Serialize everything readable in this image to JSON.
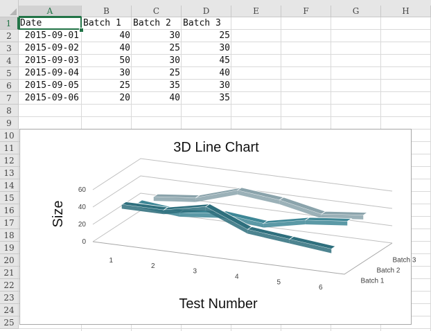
{
  "columns": [
    "A",
    "B",
    "C",
    "D",
    "E",
    "F",
    "G",
    "H"
  ],
  "rows": [
    "1",
    "2",
    "3",
    "4",
    "5",
    "6",
    "7",
    "8",
    "9",
    "10",
    "11",
    "12",
    "13",
    "14",
    "15",
    "16",
    "17",
    "18",
    "19",
    "20",
    "21",
    "22",
    "23",
    "24",
    "25"
  ],
  "table": {
    "headers": [
      "Date",
      "Batch 1",
      "Batch 2",
      "Batch 3"
    ],
    "data": [
      [
        "2015-09-01",
        "40",
        "30",
        "25"
      ],
      [
        "2015-09-02",
        "40",
        "25",
        "30"
      ],
      [
        "2015-09-03",
        "50",
        "30",
        "45"
      ],
      [
        "2015-09-04",
        "30",
        "25",
        "40"
      ],
      [
        "2015-09-05",
        "25",
        "35",
        "30"
      ],
      [
        "2015-09-06",
        "20",
        "40",
        "35"
      ]
    ]
  },
  "chart_data": {
    "type": "line",
    "subtype": "3d-line",
    "title": "3D Line Chart",
    "xlabel": "Test Number",
    "ylabel": "Size",
    "categories": [
      "1",
      "2",
      "3",
      "4",
      "5",
      "6"
    ],
    "yticks": [
      "0",
      "20",
      "40",
      "60"
    ],
    "ylim": [
      0,
      60
    ],
    "series": [
      {
        "name": "Batch 1",
        "values": [
          40,
          40,
          50,
          30,
          25,
          20
        ],
        "color": "#2e6f7d"
      },
      {
        "name": "Batch 2",
        "values": [
          30,
          25,
          30,
          25,
          35,
          40
        ],
        "color": "#3e8796"
      },
      {
        "name": "Batch 3",
        "values": [
          25,
          30,
          45,
          40,
          30,
          35
        ],
        "color": "#8aa3ab"
      }
    ],
    "legend": "right"
  }
}
